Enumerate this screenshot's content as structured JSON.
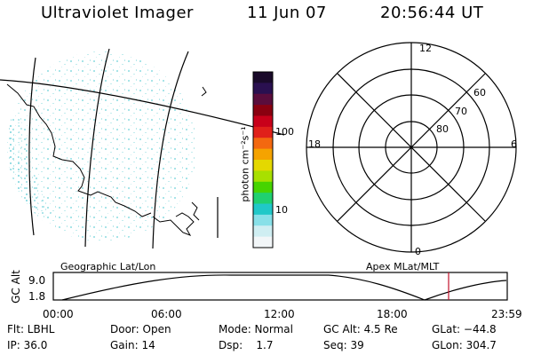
{
  "header": {
    "instrument": "Ultraviolet Imager",
    "date": "11 Jun 07",
    "time": "20:56:44 UT"
  },
  "colorbar": {
    "unit_label": "photon cm⁻²s⁻¹",
    "ticks": [
      "100",
      "10"
    ],
    "colors": [
      "#1a0a2a",
      "#2a1050",
      "#5a0d3c",
      "#8a0010",
      "#c8001a",
      "#e0201a",
      "#f36810",
      "#f5a300",
      "#e4d800",
      "#a8e000",
      "#46d400",
      "#20d070",
      "#20c8c8",
      "#88e0e8",
      "#cfeef2",
      "#f2f6f8"
    ]
  },
  "left_map": {
    "caption": "Geographic Lat/Lon"
  },
  "polar_plot": {
    "caption": "Apex MLat/MLT",
    "mlt_labels": [
      "12",
      "18",
      "6",
      "0"
    ],
    "lat_labels": [
      "80",
      "70",
      "60"
    ]
  },
  "timeline": {
    "ylabel": "GC Alt",
    "y_ticks": [
      "9.0",
      "1.8"
    ],
    "x_ticks": [
      "00:00",
      "06:00",
      "12:00",
      "18:00",
      "23:59"
    ],
    "current_marker_color": "#c0102a"
  },
  "info": {
    "flt": "Flt: LBHL",
    "ip": "IP: 36.0",
    "door": "Door: Open",
    "gain": "Gain: 14",
    "mode": "Mode: Normal",
    "dsp": "Dsp:    1.7",
    "gc_alt": "GC Alt: 4.5 Re",
    "seq": "Seq: 39",
    "glat": "GLat: −44.8",
    "glon": "GLon: 304.7"
  }
}
